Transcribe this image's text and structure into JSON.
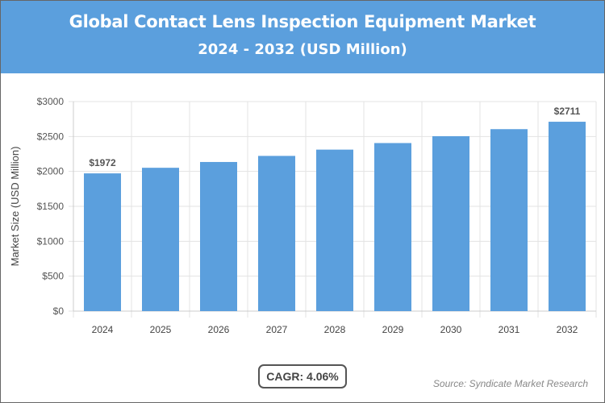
{
  "header": {
    "title": "Global Contact Lens Inspection Equipment Market",
    "subtitle": "2024 - 2032 (USD Million)",
    "color": "#5b9fdd"
  },
  "chart_data": {
    "type": "bar",
    "title": "Global Contact Lens Inspection Equipment Market",
    "subtitle": "2024 - 2032 (USD Million)",
    "ylabel": "Market Size (USD Million)",
    "xlabel": "",
    "categories": [
      "2024",
      "2025",
      "2026",
      "2027",
      "2028",
      "2029",
      "2030",
      "2031",
      "2032"
    ],
    "values": [
      1972,
      2052,
      2135,
      2222,
      2312,
      2406,
      2504,
      2605,
      2711
    ],
    "data_labels": {
      "0": "$1972",
      "8": "$2711"
    },
    "ylim": [
      0,
      3000
    ],
    "yticks": [
      0,
      500,
      1000,
      1500,
      2000,
      2500,
      3000
    ],
    "ytick_labels": [
      "$0",
      "$500",
      "$1000",
      "$1500",
      "$2000",
      "$2500",
      "$3000"
    ],
    "grid": true,
    "bar_color": "#5b9fdd"
  },
  "cagr": "CAGR: 4.06%",
  "source": "Source: Syndicate Market Research"
}
